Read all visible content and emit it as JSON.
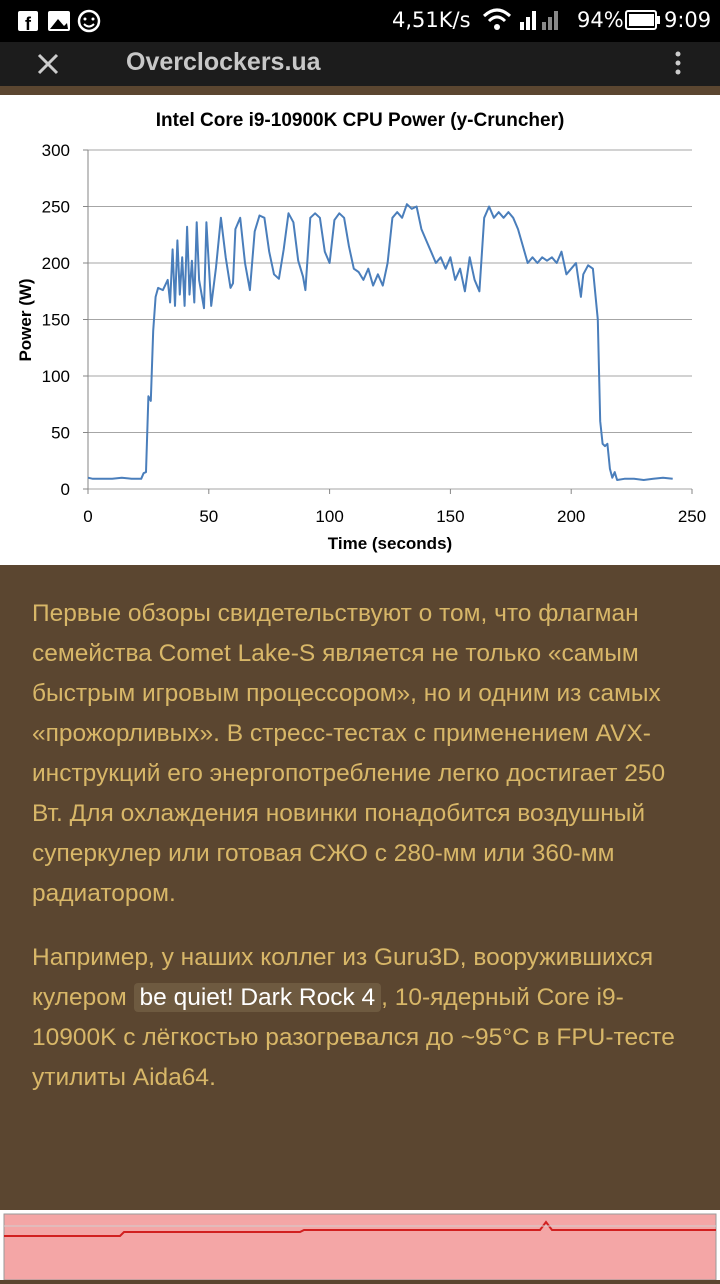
{
  "status_bar": {
    "speed": "4,51K/s",
    "battery": "94%",
    "time": "9:09"
  },
  "toolbar": {
    "title": "Overclockers.ua"
  },
  "chart_data": {
    "type": "line",
    "title": "Intel Core i9-10900K CPU Power (y-Cruncher)",
    "x_label": "Time (seconds)",
    "y_label": "Power (W)",
    "color": "#4a7ebb",
    "x": [
      0,
      2,
      6,
      10,
      14,
      18,
      22,
      23,
      24,
      25,
      26,
      27,
      28,
      29,
      31,
      33,
      34,
      35,
      36,
      37,
      38,
      39,
      40,
      41,
      42,
      43,
      44,
      45,
      46,
      48,
      49,
      51,
      53,
      55,
      57,
      59,
      60,
      61,
      63,
      65,
      67,
      69,
      71,
      73,
      75,
      77,
      79,
      81,
      83,
      85,
      87,
      89,
      90,
      92,
      94,
      96,
      98,
      100,
      102,
      104,
      106,
      108,
      110,
      112,
      114,
      116,
      118,
      120,
      122,
      124,
      126,
      128,
      130,
      132,
      134,
      136,
      138,
      140,
      142,
      144,
      146,
      148,
      150,
      152,
      154,
      156,
      158,
      160,
      162,
      164,
      166,
      168,
      170,
      172,
      174,
      176,
      178,
      180,
      182,
      184,
      186,
      188,
      190,
      192,
      194,
      196,
      198,
      200,
      202,
      204,
      205,
      207,
      209,
      211,
      212,
      213,
      214,
      215,
      216,
      217,
      218,
      219,
      222,
      226,
      230,
      234,
      238,
      242
    ],
    "values": [
      10,
      9,
      9,
      9,
      10,
      9,
      9,
      14,
      15,
      82,
      78,
      140,
      170,
      178,
      176,
      185,
      165,
      212,
      162,
      220,
      172,
      205,
      162,
      232,
      172,
      202,
      165,
      236,
      185,
      160,
      236,
      162,
      196,
      240,
      205,
      178,
      182,
      230,
      240,
      200,
      176,
      228,
      242,
      240,
      210,
      190,
      186,
      212,
      244,
      236,
      202,
      188,
      176,
      240,
      244,
      240,
      210,
      200,
      238,
      244,
      240,
      215,
      195,
      192,
      185,
      195,
      180,
      190,
      180,
      200,
      240,
      245,
      240,
      252,
      248,
      250,
      230,
      220,
      210,
      200,
      205,
      195,
      205,
      185,
      195,
      175,
      205,
      185,
      175,
      240,
      250,
      240,
      245,
      240,
      245,
      240,
      230,
      215,
      200,
      205,
      200,
      205,
      202,
      205,
      200,
      210,
      190,
      195,
      200,
      170,
      190,
      198,
      195,
      150,
      60,
      40,
      38,
      40,
      18,
      10,
      15,
      8,
      9,
      9,
      8,
      9,
      10,
      9
    ],
    "xlim": [
      0,
      250
    ],
    "ylim": [
      0,
      300
    ],
    "xticks": [
      0,
      50,
      100,
      150,
      200,
      250
    ],
    "yticks": [
      0,
      50,
      100,
      150,
      200,
      250,
      300
    ],
    "grid": true
  },
  "article": {
    "paragraph1": "Первые обзоры свидетельствуют о том, что флагман семейства Comet Lake-S является не только «самым быстрым игровым процессором», но и одним из самых «прожорливых». В стресс-тестах с применением AVX-инструкций его энергопотребление легко достигает 250 Вт. Для охлаждения новинки понадобится воздушный суперкулер или готовая СЖО с 280-мм или 360-мм радиатором.",
    "paragraph2": {
      "before": "Например, у наших коллег из Guru3D, вооружившихся кулером",
      "link": "be quiet! Dark Rock 4",
      "after": ", 10-ядерный Core i9-10900K с лёгкостью разогревался до ~95°C в FPU-тесте утилиты Aida64."
    }
  }
}
